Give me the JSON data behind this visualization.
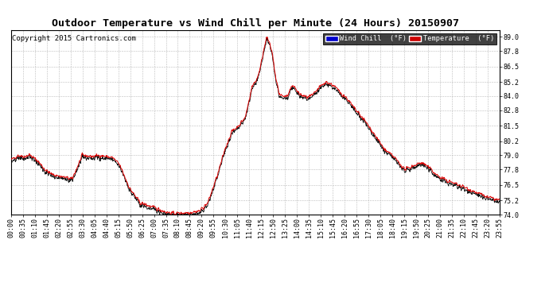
{
  "title": "Outdoor Temperature vs Wind Chill per Minute (24 Hours) 20150907",
  "copyright": "Copyright 2015 Cartronics.com",
  "ylim": [
    74.0,
    89.6
  ],
  "yticks": [
    74.0,
    75.2,
    76.5,
    77.8,
    79.0,
    80.2,
    81.5,
    82.8,
    84.0,
    85.2,
    86.5,
    87.8,
    89.0
  ],
  "xtick_labels": [
    "00:00",
    "00:35",
    "01:10",
    "01:45",
    "02:20",
    "02:55",
    "03:30",
    "04:05",
    "04:40",
    "05:15",
    "05:50",
    "06:25",
    "07:00",
    "07:35",
    "08:10",
    "08:45",
    "09:20",
    "09:55",
    "10:30",
    "11:05",
    "11:40",
    "12:15",
    "12:50",
    "13:25",
    "14:00",
    "14:35",
    "15:10",
    "15:45",
    "16:20",
    "16:55",
    "17:30",
    "18:05",
    "18:40",
    "19:15",
    "19:50",
    "20:25",
    "21:00",
    "21:35",
    "22:10",
    "22:45",
    "23:20",
    "23:55"
  ],
  "background_color": "#ffffff",
  "grid_color": "#bbbbbb",
  "line_color_temp": "#dd0000",
  "line_color_wind": "#111111",
  "legend_wind_bg": "#0000cc",
  "legend_temp_bg": "#cc0000",
  "title_fontsize": 9.5,
  "copyright_fontsize": 6.5,
  "tick_fontsize": 6.0,
  "figwidth": 6.9,
  "figheight": 3.75,
  "dpi": 100
}
